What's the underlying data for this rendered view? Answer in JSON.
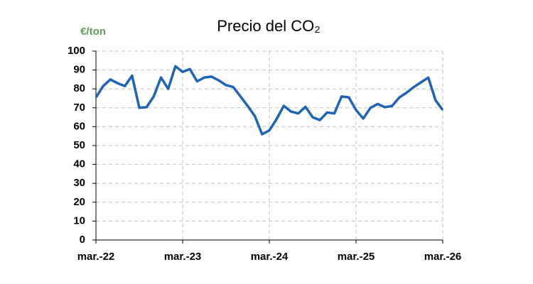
{
  "chart_data": {
    "type": "line",
    "title": "Precio del CO₂",
    "y_label": "€/ton",
    "categories": [
      "mar.-22",
      null,
      null,
      null,
      null,
      null,
      null,
      null,
      null,
      null,
      null,
      null,
      "mar.-23",
      null,
      null,
      null,
      null,
      null,
      null,
      null,
      null,
      null,
      null,
      null,
      "mar.-24",
      null,
      null,
      null,
      null,
      null,
      null,
      null,
      null,
      null,
      null,
      null,
      "mar.-25",
      null,
      null,
      null,
      null,
      null,
      null,
      null,
      null,
      null,
      null,
      null,
      "mar.-26"
    ],
    "series": [
      {
        "name": "Precio del CO₂",
        "color": "#1f64b4",
        "values": [
          75.5,
          81.5,
          85,
          83,
          81.5,
          87,
          70,
          70.3,
          76,
          86,
          80,
          92,
          89,
          90.5,
          84,
          86,
          86.5,
          84.5,
          82,
          81,
          76,
          71,
          65.5,
          56,
          58,
          64,
          71,
          68,
          67,
          70.5,
          65,
          63.5,
          67.5,
          67,
          76,
          75.5,
          68.8,
          64.3,
          70,
          72,
          70.3,
          71,
          75.5,
          78,
          81,
          83.5,
          86,
          74,
          68.8
        ]
      }
    ],
    "ylim": [
      0,
      100
    ],
    "yticks": [
      0,
      10,
      20,
      30,
      40,
      50,
      60,
      70,
      80,
      90,
      100
    ],
    "grid": true
  }
}
